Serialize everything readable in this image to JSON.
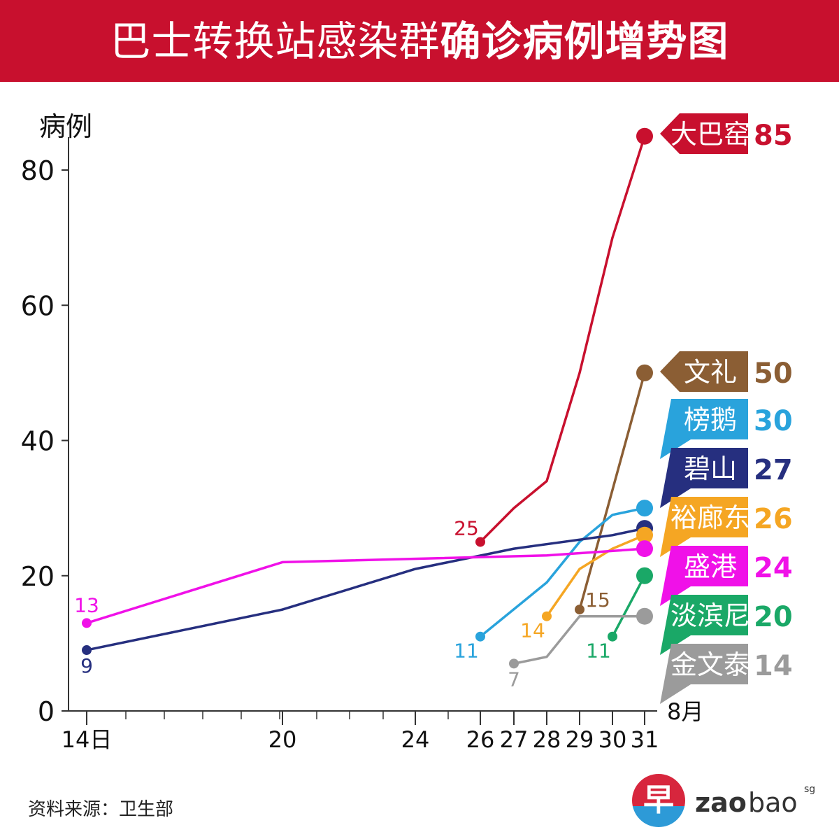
{
  "title": {
    "light": "巴士转换站感染群",
    "bold": "确诊病例增势图"
  },
  "source": "资料来源：卫生部",
  "logo": {
    "char": "早",
    "zao": "zao",
    "bao": "bao",
    "sg": "sg"
  },
  "colors": {
    "title_bg": "#c8102e",
    "axis": "#333333",
    "tick_text": "#111111"
  },
  "chart_data": {
    "type": "line",
    "ylabel": "病例",
    "xlabel_suffix": "8月",
    "ylim": [
      0,
      80
    ],
    "y_ticks": [
      {
        "value": 0,
        "label": "0"
      },
      {
        "value": 20,
        "label": "20"
      },
      {
        "value": 40,
        "label": "40"
      },
      {
        "value": 60,
        "label": "60"
      },
      {
        "value": 80,
        "label": "80"
      }
    ],
    "x_ticks": [
      {
        "value": 14,
        "label": "14日"
      },
      {
        "value": 20,
        "label": "20"
      },
      {
        "value": 24,
        "label": "24"
      },
      {
        "value": 26,
        "label": "26"
      },
      {
        "value": 27,
        "label": "27"
      },
      {
        "value": 28,
        "label": "28"
      },
      {
        "value": 29,
        "label": "29"
      },
      {
        "value": 30,
        "label": "30"
      },
      {
        "value": 31,
        "label": "31"
      }
    ],
    "x_minor_ticks": [
      15,
      16,
      17,
      18,
      19,
      21,
      22,
      23,
      25
    ],
    "xlim": [
      13.5,
      31.5
    ],
    "series": [
      {
        "name": "大巴窑",
        "color": "#c8102e",
        "points": [
          [
            26,
            25
          ],
          [
            27,
            30
          ],
          [
            28,
            34
          ],
          [
            29,
            50
          ],
          [
            30,
            70
          ],
          [
            31,
            85
          ]
        ],
        "start_label": "25",
        "start_label_pos": "above-left",
        "end_value": "85",
        "tag_style": "arrow-left"
      },
      {
        "name": "文礼",
        "color": "#8b5e34",
        "points": [
          [
            29,
            15
          ],
          [
            31,
            50
          ]
        ],
        "start_label": "15",
        "start_label_pos": "above-right",
        "end_value": "50",
        "tag_style": "arrow-left"
      },
      {
        "name": "榜鹅",
        "color": "#29a3dc",
        "points": [
          [
            26,
            11
          ],
          [
            28,
            19
          ],
          [
            29,
            25
          ],
          [
            30,
            29
          ],
          [
            31,
            30
          ]
        ],
        "start_label": "11",
        "start_label_pos": "below-left",
        "end_value": "30",
        "tag_style": "slant"
      },
      {
        "name": "碧山",
        "color": "#262f7f",
        "points": [
          [
            14,
            9
          ],
          [
            20,
            15
          ],
          [
            24,
            21
          ],
          [
            27,
            24
          ],
          [
            30,
            26
          ],
          [
            31,
            27
          ]
        ],
        "start_label": "9",
        "start_label_pos": "below",
        "end_value": "27",
        "tag_style": "slant"
      },
      {
        "name": "裕廊东",
        "color": "#f5a623",
        "points": [
          [
            28,
            14
          ],
          [
            29,
            21
          ],
          [
            30,
            24
          ],
          [
            31,
            26
          ]
        ],
        "start_label": "14",
        "start_label_pos": "below-left",
        "end_value": "26",
        "tag_style": "slant"
      },
      {
        "name": "盛港",
        "color": "#f011e8",
        "points": [
          [
            14,
            13
          ],
          [
            20,
            22
          ],
          [
            28,
            23
          ],
          [
            31,
            24
          ]
        ],
        "start_label": "13",
        "start_label_pos": "above",
        "end_value": "24",
        "tag_style": "slant"
      },
      {
        "name": "淡滨尼",
        "color": "#1aa867",
        "points": [
          [
            30,
            11
          ],
          [
            31,
            20
          ]
        ],
        "start_label": "11",
        "start_label_pos": "below-left",
        "end_value": "20",
        "tag_style": "slant"
      },
      {
        "name": "金文泰",
        "color": "#9b9b9b",
        "points": [
          [
            27,
            7
          ],
          [
            28,
            8
          ],
          [
            29,
            14
          ],
          [
            31,
            14
          ]
        ],
        "start_label": "7",
        "start_label_pos": "below",
        "end_value": "14",
        "tag_style": "slant"
      }
    ]
  }
}
